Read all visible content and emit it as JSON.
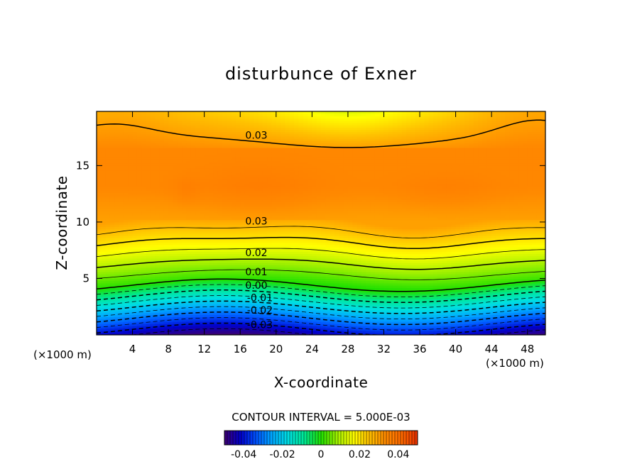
{
  "chart_data": {
    "type": "heatmap",
    "title": "disturbunce of Exner",
    "xlabel": "X-coordinate",
    "ylabel": "Z-coordinate",
    "x_unit": "(×1000 m)",
    "y_unit": "(×1000 m)",
    "xlim": [
      0,
      50
    ],
    "ylim": [
      0,
      19.8
    ],
    "x_ticks": [
      "4",
      "8",
      "12",
      "16",
      "20",
      "24",
      "28",
      "32",
      "36",
      "40",
      "44",
      "48"
    ],
    "y_ticks": [
      "5",
      "10",
      "15"
    ],
    "contour_interval_text": "CONTOUR INTERVAL = 5.000E-03",
    "contour_labels": [
      {
        "text": "0.03",
        "x": 17.8,
        "z": 17.7
      },
      {
        "text": "0.03",
        "x": 17.8,
        "z": 10.1
      },
      {
        "text": "0.02",
        "x": 17.8,
        "z": 7.3
      },
      {
        "text": "0.01",
        "x": 17.8,
        "z": 5.6
      },
      {
        "text": "0.00",
        "x": 17.8,
        "z": 4.4
      },
      {
        "text": "-0.01",
        "x": 18.2,
        "z": 3.3
      },
      {
        "text": "-0.02",
        "x": 18.2,
        "z": 2.2
      },
      {
        "text": "-0.03",
        "x": 18.2,
        "z": 0.9
      }
    ],
    "colorbar": {
      "min": -0.05,
      "max": 0.05,
      "tick_values": [
        -0.04,
        -0.02,
        0,
        0.02,
        0.04
      ],
      "tick_labels": [
        "-0.04",
        "-0.02",
        "0",
        "0.02",
        "0.04"
      ]
    },
    "colormap": [
      "#3c0070",
      "#0000cc",
      "#0055ff",
      "#00aaff",
      "#00e0e0",
      "#00e890",
      "#20e000",
      "#a0f000",
      "#ffff00",
      "#ffc000",
      "#ff8a00",
      "#ff6a00",
      "#e83000"
    ],
    "legend": "colorbar bottom-center"
  }
}
